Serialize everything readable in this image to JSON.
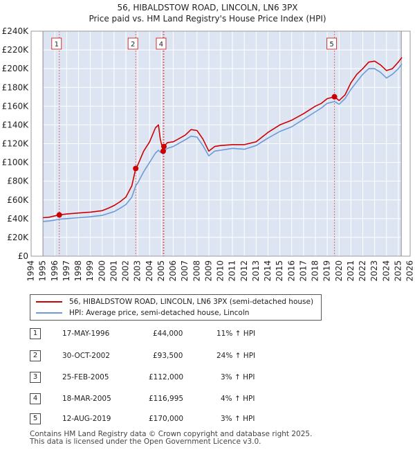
{
  "title": "56, HIBALDSTOW ROAD, LINCOLN, LN6 3PX",
  "subtitle": "Price paid vs. HM Land Registry's House Price Index (HPI)",
  "colors": {
    "property": "#cc0000",
    "hpi": "#6a9bd8",
    "band": "#dde5f3",
    "vline": "#e06666"
  },
  "legend": {
    "property_label": "56, HIBALDSTOW ROAD, LINCOLN, LN6 3PX (semi-detached house)",
    "hpi_label": "HPI: Average price, semi-detached house, Lincoln"
  },
  "transactions": [
    {
      "num": "1",
      "date": "17-MAY-1996",
      "price": "£44,000",
      "hpi": "11% ↑ HPI"
    },
    {
      "num": "2",
      "date": "30-OCT-2002",
      "price": "£93,500",
      "hpi": "24% ↑ HPI"
    },
    {
      "num": "3",
      "date": "25-FEB-2005",
      "price": "£112,000",
      "hpi": "3% ↑ HPI"
    },
    {
      "num": "4",
      "date": "18-MAR-2005",
      "price": "£116,995",
      "hpi": "4% ↑ HPI"
    },
    {
      "num": "5",
      "date": "12-AUG-2019",
      "price": "£170,000",
      "hpi": "3% ↑ HPI"
    }
  ],
  "footer": {
    "line1": "Contains HM Land Registry data © Crown copyright and database right 2025.",
    "line2": "This data is licensed under the Open Government Licence v3.0."
  },
  "chart_data": {
    "type": "line",
    "title": "56, HIBALDSTOW ROAD, LINCOLN, LN6 3PX",
    "subtitle": "Price paid vs. HM Land Registry's House Price Index (HPI)",
    "xlim": [
      1994,
      2026
    ],
    "ylim": [
      0,
      240000
    ],
    "x_ticks": [
      1994,
      1995,
      1996,
      1997,
      1998,
      1999,
      2000,
      2001,
      2002,
      2003,
      2004,
      2005,
      2006,
      2007,
      2008,
      2009,
      2010,
      2011,
      2012,
      2013,
      2014,
      2015,
      2016,
      2017,
      2018,
      2019,
      2020,
      2021,
      2022,
      2023,
      2024,
      2025,
      2026
    ],
    "y_ticks": [
      0,
      20000,
      40000,
      60000,
      80000,
      100000,
      120000,
      140000,
      160000,
      180000,
      200000,
      220000,
      240000
    ],
    "y_tick_labels": [
      "£0",
      "£20K",
      "£40K",
      "£60K",
      "£80K",
      "£100K",
      "£120K",
      "£140K",
      "£160K",
      "£180K",
      "£200K",
      "£220K",
      "£240K"
    ],
    "data_range_shading": {
      "from": 1995.0,
      "to": 2025.25
    },
    "series": [
      {
        "name": "56, HIBALDSTOW ROAD, LINCOLN, LN6 3PX (semi-detached house)",
        "color": "#cc0000",
        "x": [
          1995.0,
          1995.5,
          1996.0,
          1996.38,
          1997.0,
          1998.0,
          1999.0,
          2000.0,
          2000.5,
          2001.0,
          2001.5,
          2002.0,
          2002.5,
          2002.83,
          2003.0,
          2003.5,
          2004.0,
          2004.5,
          2004.75,
          2004.9,
          2005.15,
          2005.21,
          2005.5,
          2006.0,
          2007.0,
          2007.5,
          2008.0,
          2008.5,
          2009.0,
          2009.5,
          2010.0,
          2011.0,
          2012.0,
          2013.0,
          2014.0,
          2015.0,
          2016.0,
          2017.0,
          2018.0,
          2018.5,
          2019.0,
          2019.61,
          2020.0,
          2020.5,
          2021.0,
          2021.5,
          2022.0,
          2022.5,
          2023.0,
          2023.5,
          2024.0,
          2024.5,
          2025.0,
          2025.3
        ],
        "y": [
          41000,
          41500,
          43000,
          44000,
          45000,
          46000,
          47000,
          48500,
          51000,
          54000,
          58000,
          63000,
          75000,
          93500,
          97000,
          112000,
          122000,
          137000,
          140000,
          125000,
          112000,
          116995,
          121000,
          122000,
          129000,
          135000,
          134000,
          125000,
          112000,
          117000,
          118000,
          119000,
          119000,
          122000,
          132000,
          140000,
          145000,
          152000,
          160000,
          163000,
          168000,
          170000,
          166000,
          172000,
          185000,
          194000,
          200000,
          207000,
          208000,
          204000,
          198000,
          200000,
          207000,
          212000
        ]
      },
      {
        "name": "HPI: Average price, semi-detached house, Lincoln",
        "color": "#6a9bd8",
        "x": [
          1995.0,
          1995.5,
          1996.0,
          1996.38,
          1997.0,
          1998.0,
          1999.0,
          2000.0,
          2000.5,
          2001.0,
          2001.5,
          2002.0,
          2002.5,
          2002.83,
          2003.0,
          2003.5,
          2004.0,
          2004.5,
          2004.75,
          2004.9,
          2005.15,
          2005.21,
          2005.5,
          2006.0,
          2007.0,
          2007.5,
          2008.0,
          2008.5,
          2009.0,
          2009.5,
          2010.0,
          2011.0,
          2012.0,
          2013.0,
          2014.0,
          2015.0,
          2016.0,
          2017.0,
          2018.0,
          2018.5,
          2019.0,
          2019.61,
          2020.0,
          2020.5,
          2021.0,
          2021.5,
          2022.0,
          2022.5,
          2023.0,
          2023.5,
          2024.0,
          2024.5,
          2025.0,
          2025.3
        ],
        "y": [
          37000,
          37500,
          38500,
          39500,
          40000,
          41000,
          42000,
          43500,
          45500,
          47500,
          51000,
          55000,
          63000,
          75000,
          78000,
          90000,
          100000,
          110000,
          113000,
          111000,
          109000,
          112000,
          115000,
          117000,
          124000,
          128000,
          127000,
          118000,
          107000,
          112000,
          113000,
          115000,
          114000,
          118000,
          126000,
          133000,
          138000,
          146000,
          154000,
          158000,
          163000,
          165000,
          162000,
          168000,
          178000,
          186000,
          194000,
          200000,
          200000,
          196000,
          190000,
          194000,
          200000,
          205000
        ]
      }
    ],
    "markers": [
      {
        "label": "1",
        "x": 1996.38,
        "y": 44000
      },
      {
        "label": "2",
        "x": 2002.83,
        "y": 93500
      },
      {
        "label": "3",
        "x": 2005.15,
        "y": 112000
      },
      {
        "label": "4",
        "x": 2005.21,
        "y": 116995
      },
      {
        "label": "5",
        "x": 2019.61,
        "y": 170000
      }
    ],
    "marker_boxes": [
      {
        "label": "1",
        "x": 1996.38
      },
      {
        "label": "2",
        "x": 2002.83
      },
      {
        "label": "4",
        "x": 2005.21
      },
      {
        "label": "5",
        "x": 2019.61
      }
    ]
  }
}
